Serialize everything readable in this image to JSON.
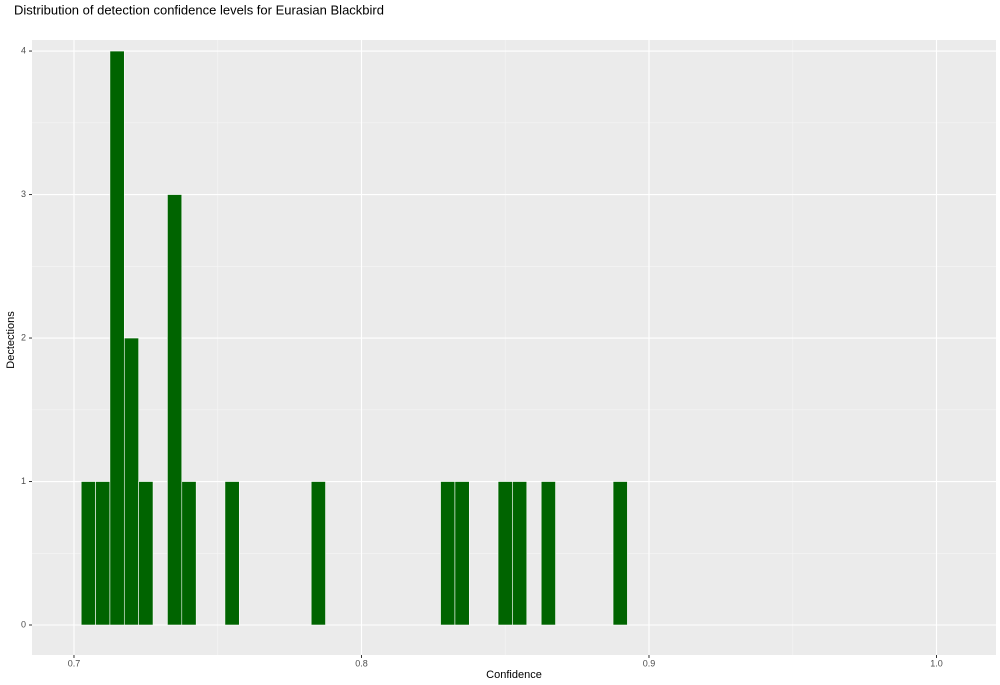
{
  "chart_data": {
    "type": "histogram",
    "title": "Distribution of detection confidence levels for Eurasian Blackbird",
    "x_label": "Confidence",
    "y_label": "Dectections",
    "bins": [
      0.7025,
      0.7075,
      0.7125,
      0.7175,
      0.7225,
      0.7275,
      0.7325,
      0.7375,
      0.7425,
      0.7475,
      0.7525,
      0.7575,
      0.7625,
      0.7675,
      0.7725,
      0.7775,
      0.7825,
      0.7875,
      0.7925,
      0.7975,
      0.8025,
      0.8075,
      0.8125,
      0.8175,
      0.8225,
      0.8275,
      0.8325,
      0.8375,
      0.8425,
      0.8475,
      0.8525,
      0.8575,
      0.8625,
      0.8675,
      0.8725,
      0.8775,
      0.8825,
      0.8875,
      0.8925
    ],
    "values": [
      1,
      1,
      4,
      2,
      1,
      0,
      3,
      1,
      0,
      0,
      1,
      0,
      0,
      0,
      0,
      0,
      1,
      0,
      0,
      0,
      0,
      0,
      0,
      0,
      0,
      1,
      1,
      0,
      0,
      1,
      1,
      0,
      1,
      0,
      0,
      0,
      0,
      1
    ],
    "color": "#006400",
    "xlim": [
      0.6854,
      1.0207
    ],
    "ylim": [
      -0.209,
      4.077
    ],
    "xticks": [
      0.7,
      0.8,
      0.9,
      {
        "value": 1.0,
        "label": "1.0"
      }
    ],
    "yticks": [
      0,
      1,
      2,
      3,
      4
    ],
    "grid": true
  }
}
